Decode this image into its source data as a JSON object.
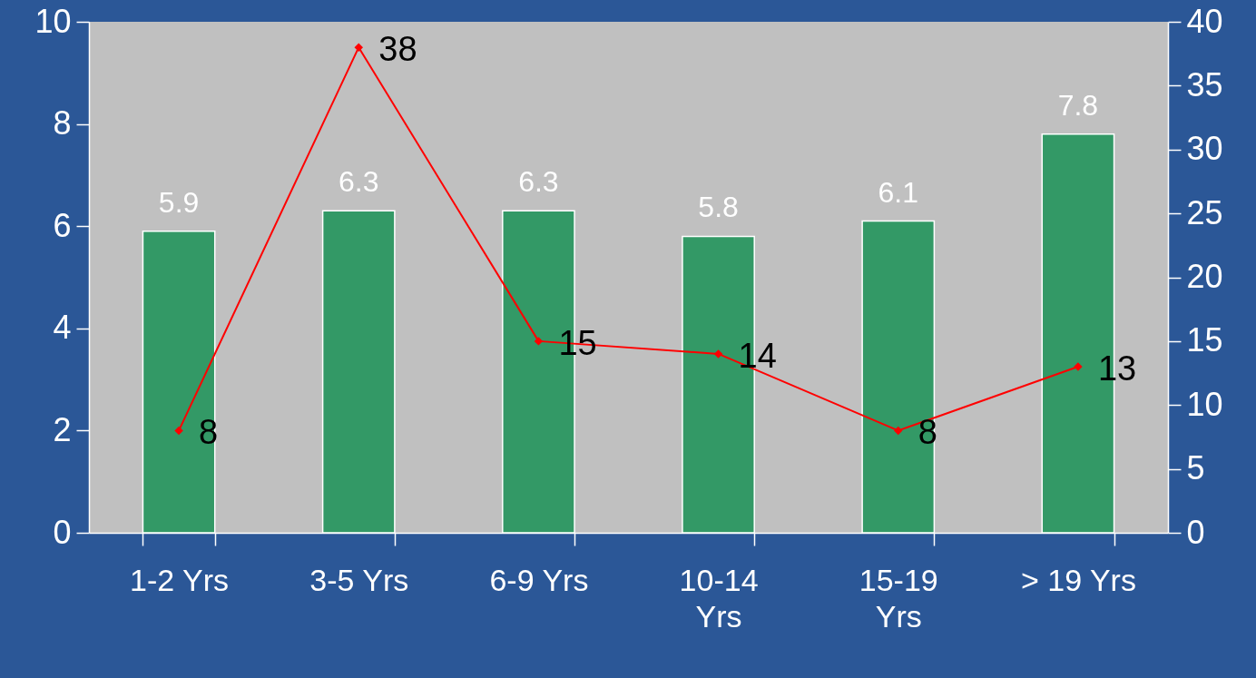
{
  "chart_data": {
    "type": "bar",
    "categories": [
      "1-2 Yrs",
      "3-5 Yrs",
      "6-9 Yrs",
      "10-14 Yrs",
      "15-19 Yrs",
      "> 19 Yrs"
    ],
    "series": [
      {
        "color": "#339966",
        "values": [
          5.9,
          6.3,
          6.3,
          5.8,
          6.1,
          7.8
        ]
      },
      {
        "type": "line",
        "axis": "y2",
        "color": "#ff0000",
        "values": [
          8,
          38,
          15,
          14,
          8,
          13
        ]
      }
    ],
    "ylim": [
      0,
      10
    ],
    "yticks": [
      0,
      2,
      4,
      6,
      8,
      10
    ],
    "y2lim": [
      0,
      40
    ],
    "y2ticks": [
      0,
      5,
      10,
      15,
      20,
      25,
      30,
      35,
      40
    ],
    "data_labels": true,
    "marker": "diamond",
    "line_style": "solid"
  }
}
